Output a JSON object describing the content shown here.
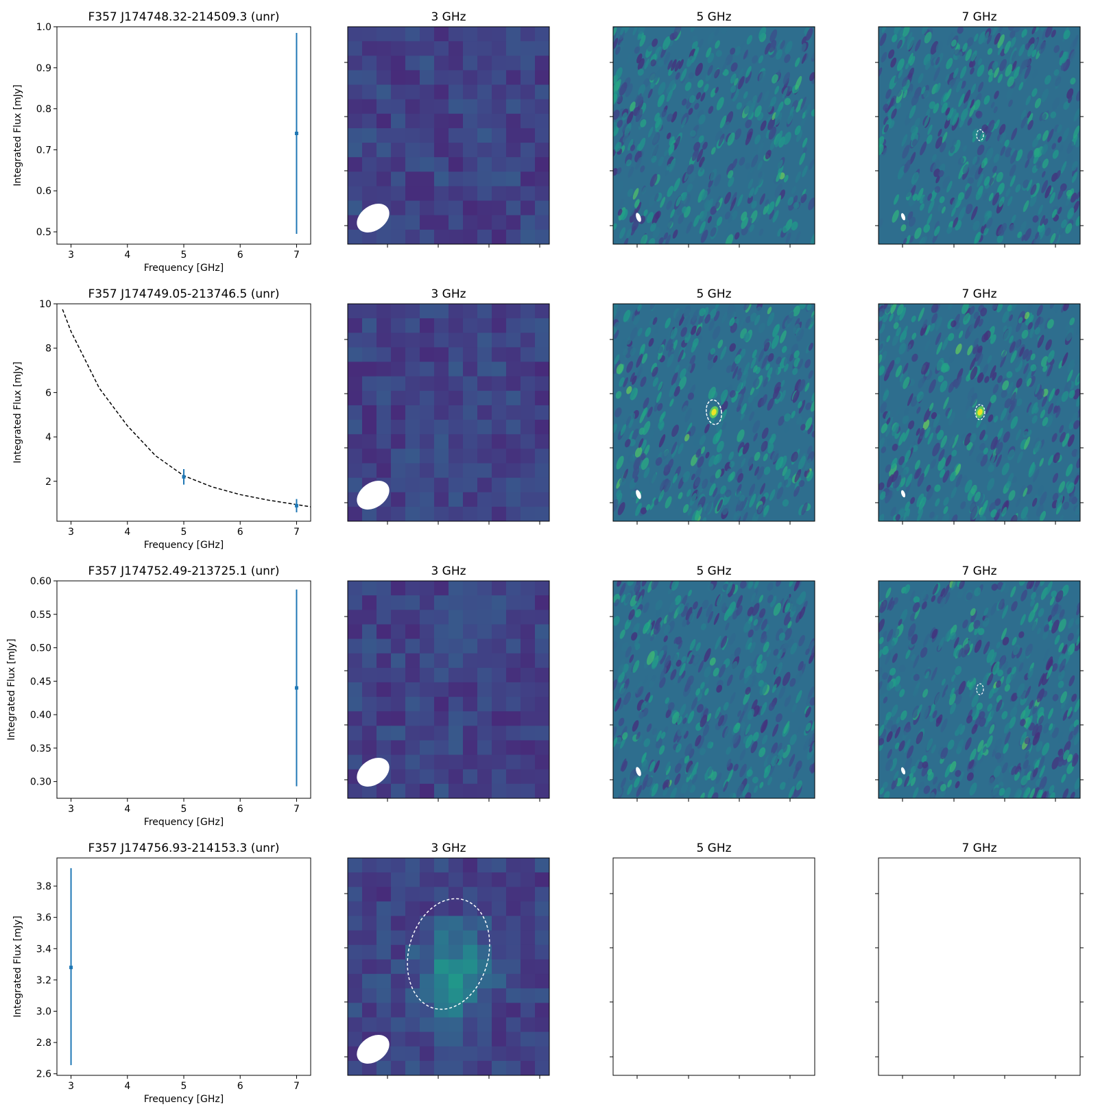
{
  "colors": {
    "errorbar": "#1f77b4",
    "fit_line": "#000000",
    "beam": "#ffffff",
    "source_ellipse": "#ffffff",
    "colormap": "viridis"
  },
  "panel_titles": [
    "3 GHz",
    "5 GHz",
    "7 GHz"
  ],
  "chart_data": [
    {
      "type": "scatter",
      "title": "F357 J174748.32-214509.3 (unr)",
      "xlabel": "Frequency [GHz]",
      "ylabel": "Integrated Flux [mJy]",
      "xlim": [
        2.75,
        7.25
      ],
      "ylim": [
        0.47,
        1.0
      ],
      "xticks": [
        3,
        4,
        5,
        6,
        7
      ],
      "yticks": [
        0.5,
        0.6,
        0.7,
        0.8,
        0.9,
        1.0
      ],
      "ytick_labels": [
        "0.5",
        "0.6",
        "0.7",
        "0.8",
        "0.9",
        "1.0"
      ],
      "points": [
        {
          "x": 7,
          "y": 0.74,
          "yerr_low": 0.495,
          "yerr_high": 0.985
        }
      ],
      "fit": null,
      "images": {
        "3 GHz": {
          "kind": "coarse",
          "seed": 11,
          "source": null
        },
        "5 GHz": {
          "kind": "fine",
          "seed": 12,
          "source": null
        },
        "7 GHz": {
          "kind": "fine",
          "seed": 13,
          "source": "faint"
        }
      }
    },
    {
      "type": "scatter",
      "title": "F357 J174749.05-213746.5 (unr)",
      "xlabel": "Frequency [GHz]",
      "ylabel": "Integrated Flux [mJy]",
      "xlim": [
        2.75,
        7.25
      ],
      "ylim": [
        0.2,
        10.0
      ],
      "xticks": [
        3,
        4,
        5,
        6,
        7
      ],
      "yticks": [
        2,
        4,
        6,
        8,
        10
      ],
      "ytick_labels": [
        "2",
        "4",
        "6",
        "8",
        "10"
      ],
      "points": [
        {
          "x": 5,
          "y": 2.2,
          "yerr_low": 1.85,
          "yerr_high": 2.55
        },
        {
          "x": 7,
          "y": 0.9,
          "yerr_low": 0.6,
          "yerr_high": 1.2
        }
      ],
      "fit": {
        "style": "dashed",
        "x": [
          2.85,
          3.0,
          3.5,
          4.0,
          4.5,
          5.0,
          5.5,
          6.0,
          6.5,
          7.0,
          7.25
        ],
        "y": [
          9.75,
          8.75,
          6.2,
          4.5,
          3.15,
          2.25,
          1.75,
          1.4,
          1.15,
          0.95,
          0.85
        ]
      },
      "images": {
        "3 GHz": {
          "kind": "coarse",
          "seed": 21,
          "source": null
        },
        "5 GHz": {
          "kind": "fine",
          "seed": 22,
          "source": "bright"
        },
        "7 GHz": {
          "kind": "fine",
          "seed": 23,
          "source": "medium"
        }
      }
    },
    {
      "type": "scatter",
      "title": "F357 J174752.49-213725.1 (unr)",
      "xlabel": "Frequency [GHz]",
      "ylabel": "Integrated Flux [mJy]",
      "xlim": [
        2.75,
        7.25
      ],
      "ylim": [
        0.275,
        0.6
      ],
      "xticks": [
        3,
        4,
        5,
        6,
        7
      ],
      "yticks": [
        0.3,
        0.35,
        0.4,
        0.45,
        0.5,
        0.55,
        0.6
      ],
      "ytick_labels": [
        "0.30",
        "0.35",
        "0.40",
        "0.45",
        "0.50",
        "0.55",
        "0.60"
      ],
      "points": [
        {
          "x": 7,
          "y": 0.44,
          "yerr_low": 0.293,
          "yerr_high": 0.587
        }
      ],
      "fit": null,
      "images": {
        "3 GHz": {
          "kind": "coarse",
          "seed": 31,
          "source": null
        },
        "5 GHz": {
          "kind": "fine",
          "seed": 32,
          "source": null
        },
        "7 GHz": {
          "kind": "fine",
          "seed": 33,
          "source": "faint"
        }
      }
    },
    {
      "type": "scatter",
      "title": "F357 J174756.93-214153.3 (unr)",
      "xlabel": "Frequency [GHz]",
      "ylabel": "Integrated Flux [mJy]",
      "xlim": [
        2.75,
        7.25
      ],
      "ylim": [
        2.59,
        3.98
      ],
      "xticks": [
        3,
        4,
        5,
        6,
        7
      ],
      "yticks": [
        2.6,
        2.8,
        3.0,
        3.2,
        3.4,
        3.6,
        3.8
      ],
      "ytick_labels": [
        "2.6",
        "2.8",
        "3.0",
        "3.2",
        "3.4",
        "3.6",
        "3.8"
      ],
      "points": [
        {
          "x": 3,
          "y": 3.28,
          "yerr_low": 2.655,
          "yerr_high": 3.915
        }
      ],
      "fit": null,
      "images": {
        "3 GHz": {
          "kind": "coarse",
          "seed": 41,
          "source": "extended"
        },
        "5 GHz": {
          "kind": "empty"
        },
        "7 GHz": {
          "kind": "empty"
        }
      }
    }
  ]
}
